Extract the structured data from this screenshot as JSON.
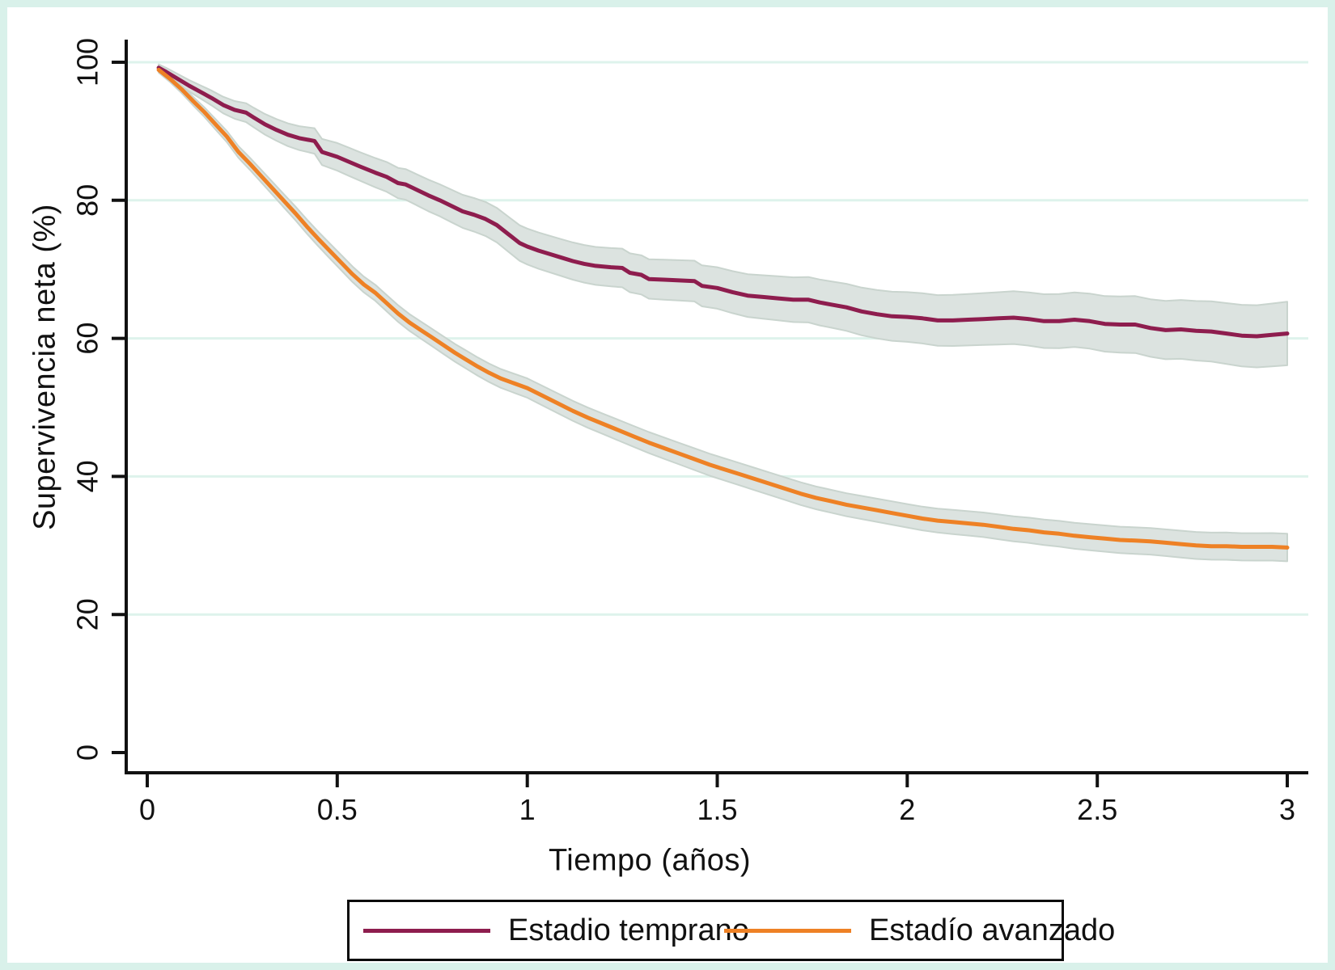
{
  "chart_data": {
    "type": "line",
    "title": "",
    "xlabel": "Tiempo (años)",
    "ylabel": "Supervivencia neta (%)",
    "xlim": [
      0,
      3
    ],
    "ylim": [
      0,
      100
    ],
    "xticks": [
      0,
      0.5,
      1,
      1.5,
      2,
      2.5,
      3
    ],
    "xtick_labels": [
      "0",
      "0.5",
      "1",
      "1.5",
      "2",
      "2.5",
      "3"
    ],
    "yticks": [
      0,
      20,
      40,
      60,
      80,
      100
    ],
    "ytick_labels": [
      "0",
      "20",
      "40",
      "60",
      "80",
      "100"
    ],
    "grid": "horizontal pale-mint gridlines at y = 20,40,60,80,100",
    "legend_position": "bottom, boxed, horizontal",
    "colors": {
      "early": "#8e1d4e",
      "advanced": "#ee8125",
      "ci_band": "#dce3e0",
      "ci_edge": "#c9d4ce",
      "grid": "#def3ec",
      "axis": "#111111",
      "frame": "#d9f1ea"
    },
    "series": [
      {
        "name": "Estadio temprano",
        "color": "#8e1d4e",
        "ci": "shaded band",
        "ci_halfwidth": [
          [
            0.03,
            0.5
          ],
          [
            0.2,
            1.2
          ],
          [
            0.5,
            2.0
          ],
          [
            1.0,
            2.6
          ],
          [
            1.5,
            3.0
          ],
          [
            2.0,
            3.6
          ],
          [
            2.5,
            4.0
          ],
          [
            3.0,
            4.6
          ]
        ],
        "points": [
          [
            0.03,
            99.2
          ],
          [
            0.05,
            98.6
          ],
          [
            0.08,
            97.6
          ],
          [
            0.11,
            96.6
          ],
          [
            0.14,
            95.7
          ],
          [
            0.17,
            94.8
          ],
          [
            0.2,
            93.8
          ],
          [
            0.23,
            93.1
          ],
          [
            0.26,
            92.7
          ],
          [
            0.28,
            92.0
          ],
          [
            0.31,
            91.0
          ],
          [
            0.34,
            90.2
          ],
          [
            0.37,
            89.5
          ],
          [
            0.4,
            89.0
          ],
          [
            0.44,
            88.6
          ],
          [
            0.46,
            87.0
          ],
          [
            0.5,
            86.3
          ],
          [
            0.53,
            85.6
          ],
          [
            0.56,
            84.9
          ],
          [
            0.6,
            84.0
          ],
          [
            0.63,
            83.4
          ],
          [
            0.66,
            82.5
          ],
          [
            0.68,
            82.3
          ],
          [
            0.71,
            81.5
          ],
          [
            0.74,
            80.7
          ],
          [
            0.77,
            80.0
          ],
          [
            0.8,
            79.2
          ],
          [
            0.83,
            78.4
          ],
          [
            0.86,
            77.9
          ],
          [
            0.89,
            77.3
          ],
          [
            0.92,
            76.4
          ],
          [
            0.95,
            75.1
          ],
          [
            0.98,
            73.8
          ],
          [
            1.0,
            73.3
          ],
          [
            1.03,
            72.7
          ],
          [
            1.06,
            72.2
          ],
          [
            1.09,
            71.7
          ],
          [
            1.12,
            71.2
          ],
          [
            1.15,
            70.8
          ],
          [
            1.18,
            70.5
          ],
          [
            1.22,
            70.3
          ],
          [
            1.25,
            70.2
          ],
          [
            1.27,
            69.5
          ],
          [
            1.3,
            69.2
          ],
          [
            1.32,
            68.6
          ],
          [
            1.36,
            68.5
          ],
          [
            1.4,
            68.4
          ],
          [
            1.44,
            68.3
          ],
          [
            1.46,
            67.6
          ],
          [
            1.5,
            67.3
          ],
          [
            1.54,
            66.7
          ],
          [
            1.58,
            66.2
          ],
          [
            1.62,
            66.0
          ],
          [
            1.66,
            65.8
          ],
          [
            1.7,
            65.6
          ],
          [
            1.74,
            65.6
          ],
          [
            1.77,
            65.2
          ],
          [
            1.8,
            64.9
          ],
          [
            1.84,
            64.5
          ],
          [
            1.88,
            63.9
          ],
          [
            1.92,
            63.5
          ],
          [
            1.96,
            63.2
          ],
          [
            2.0,
            63.1
          ],
          [
            2.04,
            62.9
          ],
          [
            2.08,
            62.6
          ],
          [
            2.12,
            62.6
          ],
          [
            2.16,
            62.7
          ],
          [
            2.2,
            62.8
          ],
          [
            2.24,
            62.9
          ],
          [
            2.28,
            63.0
          ],
          [
            2.32,
            62.8
          ],
          [
            2.36,
            62.5
          ],
          [
            2.4,
            62.5
          ],
          [
            2.44,
            62.7
          ],
          [
            2.48,
            62.5
          ],
          [
            2.52,
            62.1
          ],
          [
            2.56,
            62.0
          ],
          [
            2.6,
            62.0
          ],
          [
            2.64,
            61.5
          ],
          [
            2.68,
            61.2
          ],
          [
            2.72,
            61.3
          ],
          [
            2.76,
            61.1
          ],
          [
            2.8,
            61.0
          ],
          [
            2.84,
            60.7
          ],
          [
            2.88,
            60.4
          ],
          [
            2.92,
            60.3
          ],
          [
            2.96,
            60.5
          ],
          [
            3.0,
            60.7
          ]
        ]
      },
      {
        "name": "Estadío avanzado",
        "color": "#ee8125",
        "ci": "shaded band",
        "ci_halfwidth": [
          [
            0.03,
            0.4
          ],
          [
            0.2,
            0.8
          ],
          [
            0.5,
            1.1
          ],
          [
            1.0,
            1.4
          ],
          [
            1.5,
            1.6
          ],
          [
            2.0,
            1.7
          ],
          [
            2.5,
            1.9
          ],
          [
            3.0,
            2.0
          ]
        ],
        "points": [
          [
            0.03,
            98.9
          ],
          [
            0.06,
            97.6
          ],
          [
            0.09,
            96.1
          ],
          [
            0.12,
            94.4
          ],
          [
            0.15,
            92.8
          ],
          [
            0.18,
            91.0
          ],
          [
            0.21,
            89.2
          ],
          [
            0.24,
            87.0
          ],
          [
            0.27,
            85.3
          ],
          [
            0.3,
            83.5
          ],
          [
            0.33,
            81.7
          ],
          [
            0.36,
            79.9
          ],
          [
            0.39,
            78.1
          ],
          [
            0.42,
            76.2
          ],
          [
            0.45,
            74.4
          ],
          [
            0.48,
            72.7
          ],
          [
            0.51,
            71.0
          ],
          [
            0.54,
            69.3
          ],
          [
            0.57,
            67.8
          ],
          [
            0.6,
            66.6
          ],
          [
            0.63,
            65.1
          ],
          [
            0.66,
            63.6
          ],
          [
            0.69,
            62.3
          ],
          [
            0.72,
            61.2
          ],
          [
            0.75,
            60.1
          ],
          [
            0.78,
            59.0
          ],
          [
            0.81,
            57.9
          ],
          [
            0.84,
            56.9
          ],
          [
            0.87,
            55.9
          ],
          [
            0.9,
            55.0
          ],
          [
            0.93,
            54.2
          ],
          [
            0.96,
            53.6
          ],
          [
            1.0,
            52.8
          ],
          [
            1.04,
            51.7
          ],
          [
            1.08,
            50.6
          ],
          [
            1.12,
            49.5
          ],
          [
            1.16,
            48.5
          ],
          [
            1.2,
            47.6
          ],
          [
            1.24,
            46.7
          ],
          [
            1.28,
            45.8
          ],
          [
            1.32,
            44.9
          ],
          [
            1.36,
            44.1
          ],
          [
            1.4,
            43.3
          ],
          [
            1.44,
            42.5
          ],
          [
            1.48,
            41.7
          ],
          [
            1.52,
            41.0
          ],
          [
            1.56,
            40.3
          ],
          [
            1.6,
            39.6
          ],
          [
            1.64,
            38.9
          ],
          [
            1.68,
            38.2
          ],
          [
            1.72,
            37.5
          ],
          [
            1.76,
            36.9
          ],
          [
            1.8,
            36.4
          ],
          [
            1.84,
            35.9
          ],
          [
            1.88,
            35.5
          ],
          [
            1.92,
            35.1
          ],
          [
            1.96,
            34.7
          ],
          [
            2.0,
            34.3
          ],
          [
            2.04,
            33.9
          ],
          [
            2.08,
            33.6
          ],
          [
            2.12,
            33.4
          ],
          [
            2.16,
            33.2
          ],
          [
            2.2,
            33.0
          ],
          [
            2.24,
            32.7
          ],
          [
            2.28,
            32.4
          ],
          [
            2.32,
            32.2
          ],
          [
            2.36,
            31.9
          ],
          [
            2.4,
            31.7
          ],
          [
            2.44,
            31.4
          ],
          [
            2.48,
            31.2
          ],
          [
            2.52,
            31.0
          ],
          [
            2.56,
            30.8
          ],
          [
            2.6,
            30.7
          ],
          [
            2.64,
            30.6
          ],
          [
            2.68,
            30.4
          ],
          [
            2.72,
            30.2
          ],
          [
            2.76,
            30.0
          ],
          [
            2.8,
            29.9
          ],
          [
            2.84,
            29.9
          ],
          [
            2.88,
            29.8
          ],
          [
            2.92,
            29.8
          ],
          [
            2.96,
            29.8
          ],
          [
            3.0,
            29.7
          ]
        ]
      }
    ]
  },
  "labels": {
    "y_axis_title": "Supervivencia neta (%)",
    "x_axis_title": "Tiempo (años)",
    "legend_early": "Estadio temprano",
    "legend_advanced": "Estadío avanzado"
  }
}
